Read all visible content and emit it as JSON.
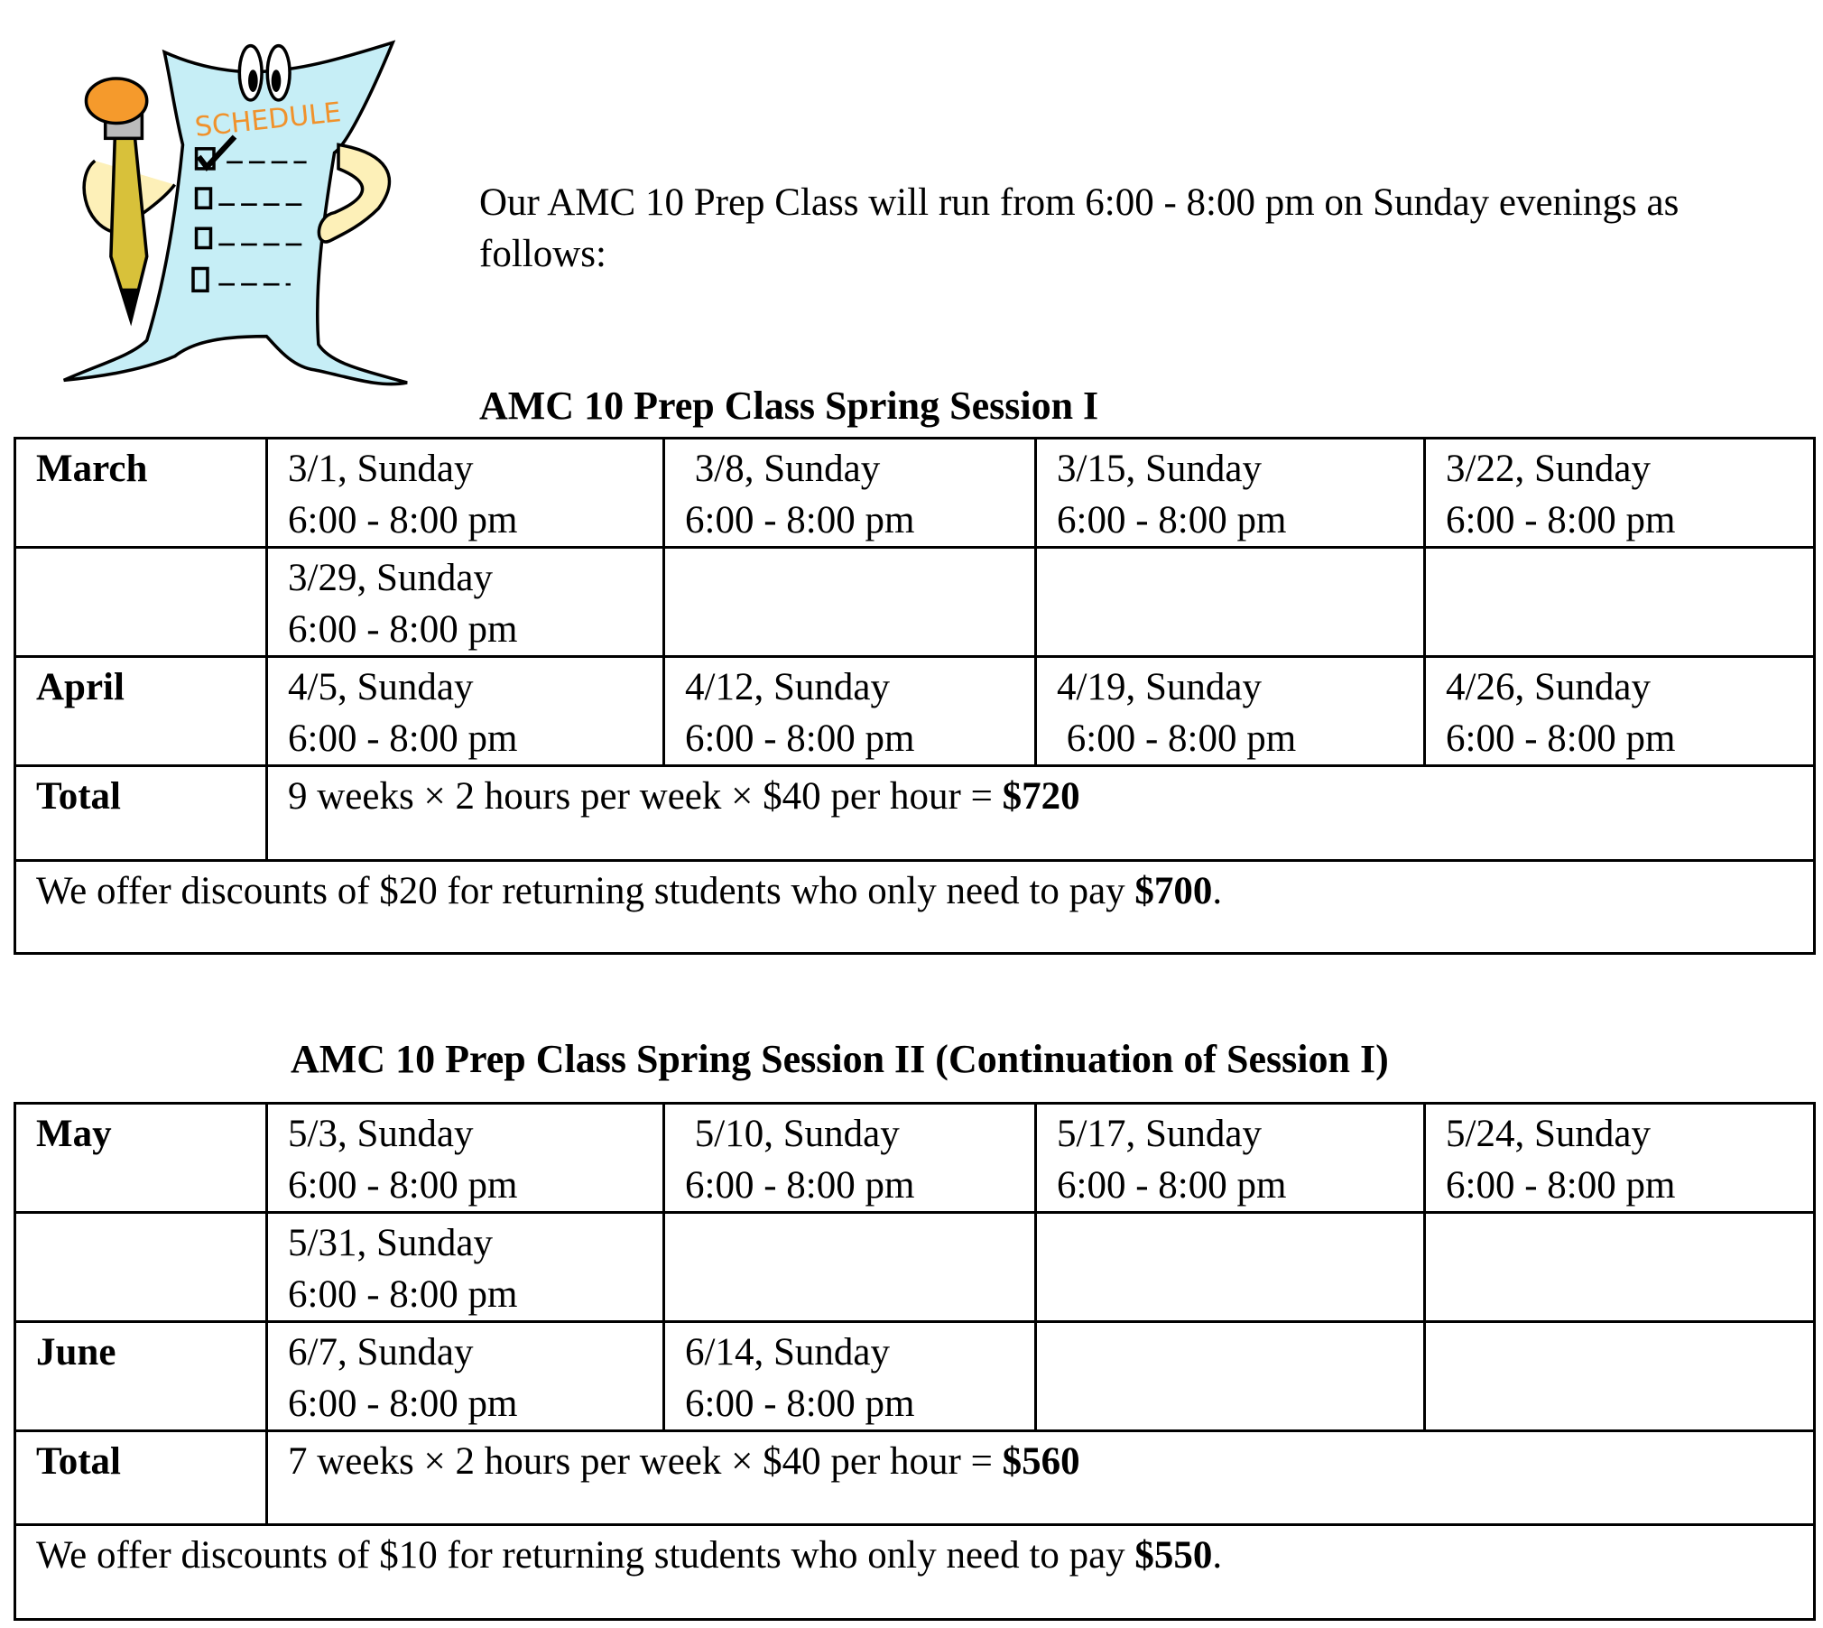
{
  "clipart": {
    "label": "SCHEDULE"
  },
  "intro": "Our AMC 10 Prep Class will run from 6:00 - 8:00 pm on Sunday evenings as follows:",
  "sessions": [
    {
      "title": "AMC 10 Prep Class Spring Session I",
      "rows": [
        {
          "month": "March",
          "cells": [
            {
              "date": "3/1, Sunday",
              "time": "6:00 - 8:00 pm"
            },
            {
              "date": " 3/8, Sunday",
              "time": "6:00 - 8:00 pm"
            },
            {
              "date": "3/15, Sunday",
              "time": "6:00 - 8:00 pm"
            },
            {
              "date": "3/22, Sunday",
              "time": "6:00 - 8:00 pm"
            }
          ]
        },
        {
          "month": "",
          "cells": [
            {
              "date": "3/29, Sunday",
              "time": "6:00 - 8:00 pm"
            },
            {},
            {},
            {}
          ]
        },
        {
          "month": "April",
          "cells": [
            {
              "date": "4/5, Sunday",
              "time": "6:00 - 8:00 pm"
            },
            {
              "date": "4/12, Sunday",
              "time": "6:00 - 8:00 pm"
            },
            {
              "date": "4/19, Sunday",
              "time": " 6:00 - 8:00 pm"
            },
            {
              "date": "4/26, Sunday",
              "time": "6:00 - 8:00 pm"
            }
          ]
        }
      ],
      "total_label": "Total",
      "total_formula": "9 weeks × 2 hours per week × $40 per hour = ",
      "total_amount": "$720",
      "discount_text": "We offer discounts of $20 for returning students who only need to pay ",
      "discount_amount": "$700",
      "discount_end": "."
    },
    {
      "title": "AMC 10 Prep Class Spring Session II (Continuation of Session I)",
      "rows": [
        {
          "month": "May",
          "cells": [
            {
              "date": "5/3, Sunday",
              "time": "6:00 - 8:00 pm"
            },
            {
              "date": " 5/10, Sunday",
              "time": "6:00 - 8:00 pm"
            },
            {
              "date": "5/17, Sunday",
              "time": "6:00 - 8:00 pm"
            },
            {
              "date": "5/24, Sunday",
              "time": "6:00 - 8:00 pm"
            }
          ]
        },
        {
          "month": "",
          "cells": [
            {
              "date": "5/31, Sunday",
              "time": "6:00 - 8:00 pm"
            },
            {},
            {},
            {}
          ]
        },
        {
          "month": "June",
          "cells": [
            {
              "date": "6/7, Sunday",
              "time": "6:00 - 8:00 pm"
            },
            {
              "date": "6/14, Sunday",
              "time": "6:00 - 8:00 pm"
            },
            {},
            {}
          ]
        }
      ],
      "total_label": "Total",
      "total_formula": "7 weeks × 2 hours per week × $40 per hour = ",
      "total_amount": "$560",
      "discount_text": "We offer discounts of $10 for returning students who only need to pay ",
      "discount_amount": "$550",
      "discount_end": "."
    }
  ]
}
